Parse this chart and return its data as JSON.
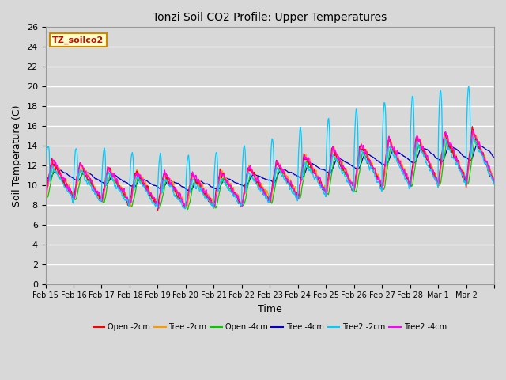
{
  "title": "Tonzi Soil CO2 Profile: Upper Temperatures",
  "xlabel": "Time",
  "ylabel": "Soil Temperature (C)",
  "ylim": [
    0,
    26
  ],
  "yticks": [
    0,
    2,
    4,
    6,
    8,
    10,
    12,
    14,
    16,
    18,
    20,
    22,
    24,
    26
  ],
  "background_color": "#d8d8d8",
  "legend_label": "TZ_soilco2",
  "series": [
    {
      "label": "Open -2cm",
      "color": "#ff0000"
    },
    {
      "label": "Tree -2cm",
      "color": "#ff9900"
    },
    {
      "label": "Open -4cm",
      "color": "#00cc00"
    },
    {
      "label": "Tree -4cm",
      "color": "#0000cc"
    },
    {
      "label": "Tree2 -2cm",
      "color": "#00ccff"
    },
    {
      "label": "Tree2 -4cm",
      "color": "#ff00ff"
    }
  ],
  "n_days": 16,
  "pts_per_day": 96,
  "date_labels": [
    "Feb 15",
    "Feb 16",
    "Feb 17",
    "Feb 18",
    "Feb 19",
    "Feb 20",
    "Feb 21",
    "Feb 22",
    "Feb 23",
    "Feb 24",
    "Feb 25",
    "Feb 26",
    "Feb 27",
    "Feb 28",
    "Mar 1",
    "Mar 2"
  ]
}
